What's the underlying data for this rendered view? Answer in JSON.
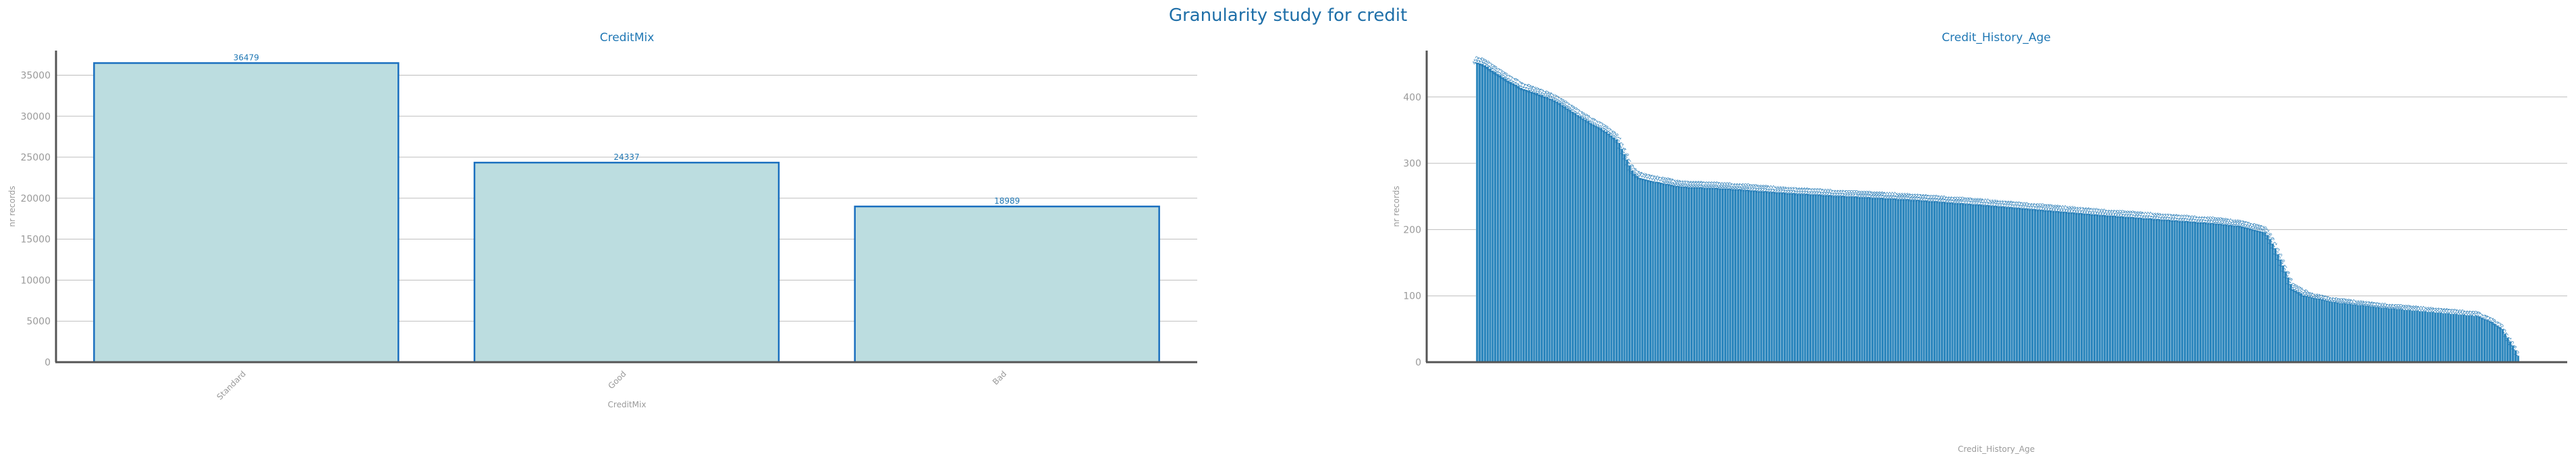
{
  "page": {
    "suptitle": "Granularity study for credit"
  },
  "chart_data": [
    {
      "type": "bar",
      "title": "CreditMix",
      "xlabel": "CreditMix",
      "ylabel": "nr records",
      "categories": [
        "Standard",
        "Good",
        "Bad"
      ],
      "values": [
        36479,
        24337,
        18989
      ],
      "data_labels": [
        "36479",
        "24337",
        "18989"
      ],
      "ylim": [
        0,
        38000
      ],
      "yticks": [
        0,
        5000,
        10000,
        15000,
        20000,
        25000,
        30000,
        35000
      ],
      "grid": true,
      "colors": {
        "fill": "#bcdde0",
        "edge": "#1a6fbf",
        "label": "#1f77b4"
      }
    },
    {
      "type": "bar",
      "title": "Credit_History_Age",
      "xlabel": "Credit_History_Age",
      "ylabel": "nr records",
      "category_count": 404,
      "description_of_values": "404 categories sorted by frequency descending (values estimated from gridlines)",
      "profile_anchors": [
        [
          0,
          452
        ],
        [
          4,
          450
        ],
        [
          10,
          440
        ],
        [
          20,
          425
        ],
        [
          30,
          412
        ],
        [
          40,
          404
        ],
        [
          50,
          395
        ],
        [
          60,
          380
        ],
        [
          70,
          365
        ],
        [
          80,
          352
        ],
        [
          90,
          335
        ],
        [
          95,
          310
        ],
        [
          100,
          285
        ],
        [
          105,
          277
        ],
        [
          115,
          272
        ],
        [
          130,
          265
        ],
        [
          160,
          262
        ],
        [
          200,
          255
        ],
        [
          240,
          250
        ],
        [
          280,
          245
        ],
        [
          320,
          238
        ],
        [
          360,
          230
        ],
        [
          400,
          222
        ],
        [
          440,
          215
        ],
        [
          470,
          210
        ],
        [
          490,
          205
        ],
        [
          505,
          195
        ],
        [
          510,
          175
        ],
        [
          515,
          150
        ],
        [
          522,
          110
        ],
        [
          530,
          100
        ],
        [
          550,
          90
        ],
        [
          580,
          82
        ],
        [
          610,
          76
        ],
        [
          640,
          70
        ],
        [
          650,
          60
        ],
        [
          656,
          50
        ],
        [
          660,
          35
        ],
        [
          664,
          20
        ],
        [
          666,
          10
        ]
      ],
      "profile_x_span": 666,
      "ylim": [
        0,
        470
      ],
      "yticks": [
        0,
        100,
        200,
        300,
        400
      ],
      "grid": true,
      "colors": {
        "fill": "#2c86bd",
        "edge": "#ffffff",
        "label": "#1f77b4"
      }
    }
  ]
}
